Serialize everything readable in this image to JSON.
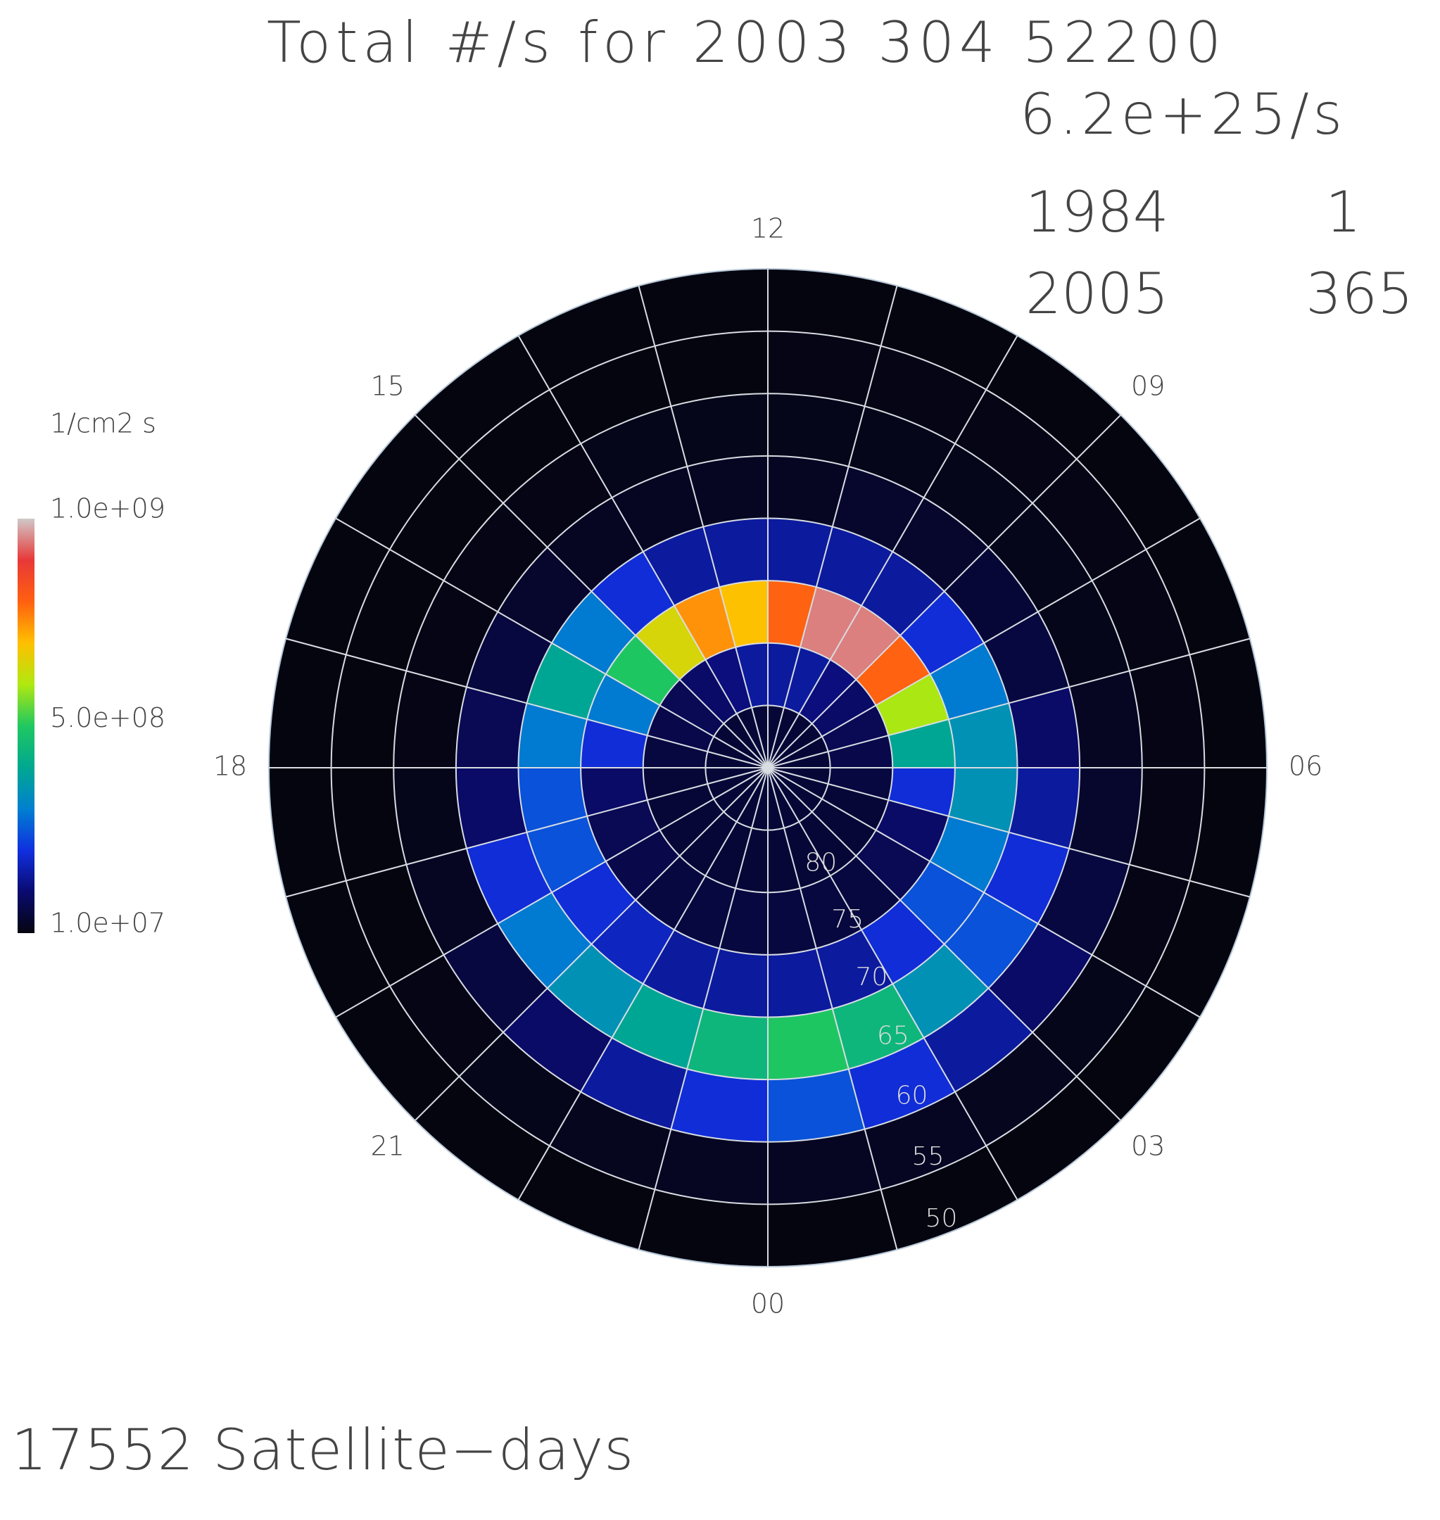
{
  "chart_data": {
    "type": "polar_heatmap",
    "title": "Total #/s for 2003 304 52200",
    "total": "6.2e+25/s",
    "start_year": "1984",
    "start_day": "1",
    "end_year": "2005",
    "end_day": "365",
    "footer": "17552 Satellite−days",
    "mlt_bins": [
      0,
      1,
      2,
      3,
      4,
      5,
      6,
      7,
      8,
      9,
      10,
      11,
      12,
      13,
      14,
      15,
      16,
      17,
      18,
      19,
      20,
      21,
      22,
      23,
      24
    ],
    "lat_bins": [
      50,
      55,
      60,
      65,
      70,
      75,
      80,
      85,
      90
    ],
    "mlt_ticks": [
      {
        "value": 0,
        "label": "00"
      },
      {
        "value": 3,
        "label": "03"
      },
      {
        "value": 6,
        "label": "06"
      },
      {
        "value": 9,
        "label": "09"
      },
      12,
      15,
      18,
      21
    ],
    "lat_ticks": [
      50,
      55,
      60,
      65,
      70,
      75,
      80
    ],
    "values": [
      [
        10000000.0,
        30000000.0,
        250000000.0,
        500000000.0,
        150000000.0,
        60000000.0,
        50000000.0,
        50000000.0
      ],
      [
        10000000.0,
        30000000.0,
        200000000.0,
        450000000.0,
        150000000.0,
        60000000.0,
        50000000.0,
        50000000.0
      ],
      [
        10000000.0,
        25000000.0,
        150000000.0,
        350000000.0,
        200000000.0,
        60000000.0,
        50000000.0,
        50000000.0
      ],
      [
        10000000.0,
        20000000.0,
        100000000.0,
        250000000.0,
        250000000.0,
        80000000.0,
        50000000.0,
        50000000.0
      ],
      [
        10000000.0,
        15000000.0,
        60000000.0,
        200000000.0,
        300000000.0,
        100000000.0,
        50000000.0,
        50000000.0
      ],
      [
        10000000.0,
        15000000.0,
        40000000.0,
        150000000.0,
        350000000.0,
        200000000.0,
        60000000.0,
        50000000.0
      ],
      [
        10000000.0,
        15000000.0,
        30000000.0,
        100000000.0,
        350000000.0,
        400000000.0,
        70000000.0,
        50000000.0
      ],
      [
        10000000.0,
        15000000.0,
        20000000.0,
        60000000.0,
        300000000.0,
        600000000.0,
        80000000.0,
        50000000.0
      ],
      [
        10000000.0,
        15000000.0,
        20000000.0,
        50000000.0,
        200000000.0,
        800000000.0,
        100000000.0,
        50000000.0
      ],
      [
        10000000.0,
        15000000.0,
        20000000.0,
        40000000.0,
        150000000.0,
        950000000.0,
        120000000.0,
        50000000.0
      ],
      [
        10000000.0,
        15000000.0,
        20000000.0,
        40000000.0,
        150000000.0,
        950000000.0,
        150000000.0,
        50000000.0
      ],
      [
        10000000.0,
        15000000.0,
        20000000.0,
        30000000.0,
        150000000.0,
        800000000.0,
        150000000.0,
        50000000.0
      ],
      [
        10000000.0,
        10000000.0,
        20000000.0,
        30000000.0,
        150000000.0,
        700000000.0,
        150000000.0,
        50000000.0
      ],
      [
        10000000.0,
        10000000.0,
        20000000.0,
        30000000.0,
        150000000.0,
        750000000.0,
        120000000.0,
        50000000.0
      ],
      [
        10000000.0,
        10000000.0,
        15000000.0,
        30000000.0,
        200000000.0,
        650000000.0,
        100000000.0,
        50000000.0
      ],
      [
        10000000.0,
        10000000.0,
        15000000.0,
        40000000.0,
        300000000.0,
        500000000.0,
        80000000.0,
        50000000.0
      ],
      [
        10000000.0,
        10000000.0,
        15000000.0,
        60000000.0,
        400000000.0,
        300000000.0,
        70000000.0,
        50000000.0
      ],
      [
        10000000.0,
        10000000.0,
        15000000.0,
        80000000.0,
        300000000.0,
        200000000.0,
        60000000.0,
        50000000.0
      ],
      [
        10000000.0,
        10000000.0,
        20000000.0,
        100000000.0,
        250000000.0,
        100000000.0,
        50000000.0,
        50000000.0
      ],
      [
        10000000.0,
        10000000.0,
        30000000.0,
        200000000.0,
        250000000.0,
        80000000.0,
        50000000.0,
        50000000.0
      ],
      [
        10000000.0,
        15000000.0,
        60000000.0,
        300000000.0,
        200000000.0,
        70000000.0,
        50000000.0,
        50000000.0
      ],
      [
        10000000.0,
        20000000.0,
        100000000.0,
        350000000.0,
        180000000.0,
        60000000.0,
        50000000.0,
        50000000.0
      ],
      [
        10000000.0,
        25000000.0,
        150000000.0,
        400000000.0,
        150000000.0,
        60000000.0,
        50000000.0,
        50000000.0
      ],
      [
        10000000.0,
        30000000.0,
        200000000.0,
        450000000.0,
        150000000.0,
        60000000.0,
        50000000.0,
        50000000.0
      ]
    ],
    "colormap": [
      "#050510",
      "#0a0a70",
      "#1030e0",
      "#0080d0",
      "#00a890",
      "#20c860",
      "#b0e810",
      "#ffc000",
      "#ff6010",
      "#e83838",
      "#d0c8c8"
    ],
    "colorbar": {
      "label": "1/cm2 s",
      "lim": [
        10000000.0,
        1000000000.0
      ],
      "ticks": [
        {
          "value": 10000000.0,
          "label": "1.0e+07"
        },
        {
          "value": 500000000.0,
          "label": "5.0e+08"
        },
        {
          "value": 1000000000.0,
          "label": "1.0e+09"
        }
      ]
    },
    "grid": true
  }
}
